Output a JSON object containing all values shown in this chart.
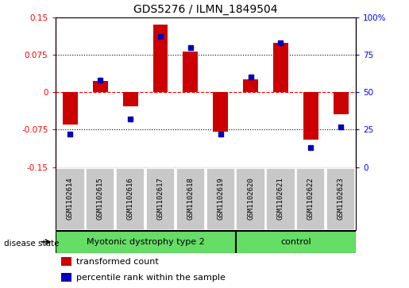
{
  "title": "GDS5276 / ILMN_1849504",
  "samples": [
    "GSM1102614",
    "GSM1102615",
    "GSM1102616",
    "GSM1102617",
    "GSM1102618",
    "GSM1102619",
    "GSM1102620",
    "GSM1102621",
    "GSM1102622",
    "GSM1102623"
  ],
  "transformed_count": [
    -0.065,
    0.022,
    -0.028,
    0.135,
    0.082,
    -0.08,
    0.025,
    0.098,
    -0.095,
    -0.045
  ],
  "percentile_rank": [
    22,
    58,
    32,
    87,
    80,
    22,
    60,
    83,
    13,
    27
  ],
  "ylim_left": [
    -0.15,
    0.15
  ],
  "ylim_right": [
    0,
    100
  ],
  "yticks_left": [
    -0.15,
    -0.075,
    0,
    0.075,
    0.15
  ],
  "yticks_right": [
    0,
    25,
    50,
    75,
    100
  ],
  "ytick_labels_left": [
    "-0.15",
    "-0.075",
    "0",
    "0.075",
    "0.15"
  ],
  "ytick_labels_right": [
    "0",
    "25",
    "50",
    "75",
    "100%"
  ],
  "hlines": [
    -0.075,
    0,
    0.075
  ],
  "bar_color": "#CC0000",
  "dot_color": "#0000BB",
  "bar_width": 0.5,
  "dot_size": 40,
  "group1_label": "Myotonic dystrophy type 2",
  "group2_label": "control",
  "group1_count": 6,
  "group2_count": 4,
  "legend_bar_label": "transformed count",
  "legend_dot_label": "percentile rank within the sample",
  "disease_state_label": "disease state",
  "label_bg_color": "#C8C8C8",
  "group_bg_color": "#66DD66",
  "border_color": "#888888"
}
